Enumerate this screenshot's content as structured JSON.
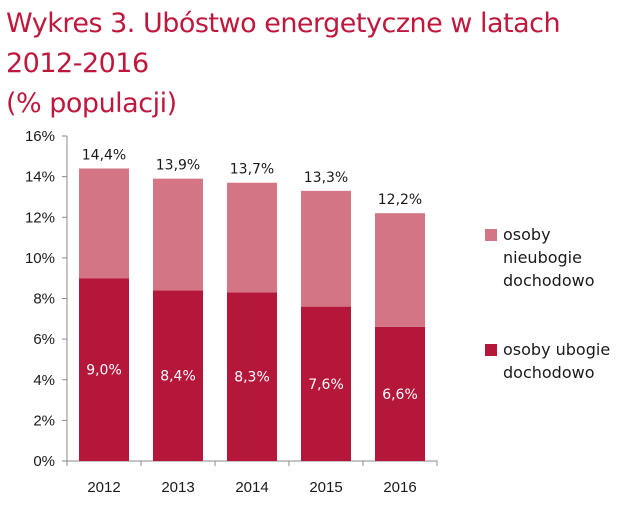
{
  "title_line1": "Wykres 3. Ubóstwo energetyczne w latach 2012-2016",
  "title_line2": "(% populacji)",
  "chart_data": {
    "type": "bar",
    "stacked": true,
    "categories": [
      "2012",
      "2013",
      "2014",
      "2015",
      "2016"
    ],
    "series": [
      {
        "name": "osoby ubogie dochodowo",
        "color": "#b5173a",
        "values": [
          9.0,
          8.4,
          8.3,
          7.6,
          6.6
        ],
        "labels": [
          "9,0%",
          "8,4%",
          "8,3%",
          "7,6%",
          "6,6%"
        ]
      },
      {
        "name": "osoby nieubogie dochodowo",
        "color": "#d47585",
        "values": [
          5.4,
          5.5,
          5.4,
          5.7,
          5.6
        ]
      }
    ],
    "totals": [
      14.4,
      13.9,
      13.7,
      13.3,
      12.2
    ],
    "total_labels": [
      "14,4%",
      "13,9%",
      "13,7%",
      "13,3%",
      "12,2%"
    ],
    "ylim": [
      0,
      16
    ],
    "yticks": [
      0,
      2,
      4,
      6,
      8,
      10,
      12,
      14,
      16
    ],
    "ytick_labels": [
      "0%",
      "2%",
      "4%",
      "6%",
      "8%",
      "10%",
      "12%",
      "14%",
      "16%"
    ],
    "legend": {
      "position": "right",
      "items": [
        {
          "lines": [
            "osoby",
            "nieubogie",
            "dochodowo"
          ],
          "color": "#d47585"
        },
        {
          "lines": [
            "osoby ubogie",
            "dochodowo"
          ],
          "color": "#b5173a"
        }
      ]
    },
    "grid": false
  }
}
